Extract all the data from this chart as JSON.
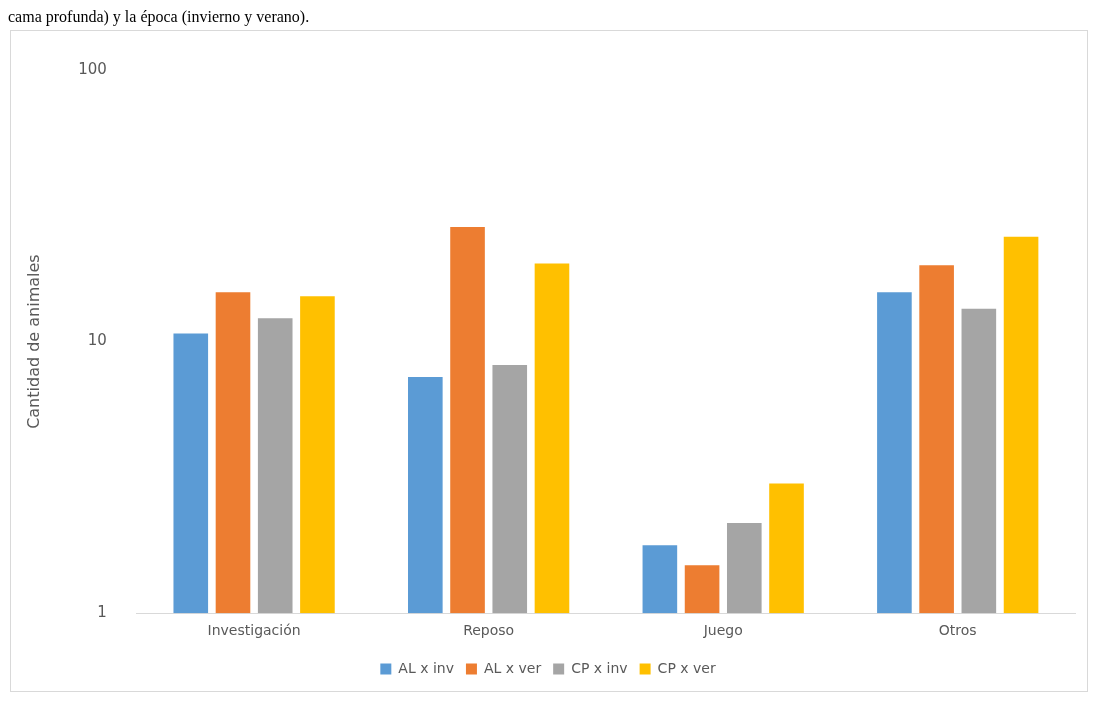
{
  "chart_data": {
    "type": "bar",
    "annotations": [
      "cama profunda) y la época (invierno y verano)."
    ],
    "ylabel": "Cantidad de animales",
    "categories": [
      "Investigación",
      "Reposo",
      "Juego",
      "Otros"
    ],
    "series": [
      {
        "name": "AL x inv",
        "color": "#5b9bd5",
        "values": [
          10.7,
          7.4,
          1.78,
          15.2
        ]
      },
      {
        "name": "AL x ver",
        "color": "#ed7d31",
        "values": [
          15.2,
          26.4,
          1.5,
          19.1
        ]
      },
      {
        "name": "CP x inv",
        "color": "#a5a5a5",
        "values": [
          12.2,
          8.2,
          2.15,
          13.2
        ]
      },
      {
        "name": "CP x ver",
        "color": "#ffc000",
        "values": [
          14.7,
          19.4,
          3.0,
          24.3
        ]
      }
    ],
    "log": "y",
    "ylim": [
      1,
      100
    ],
    "yticks": [
      1,
      10,
      100
    ],
    "grid": false,
    "legend": "bottom"
  }
}
